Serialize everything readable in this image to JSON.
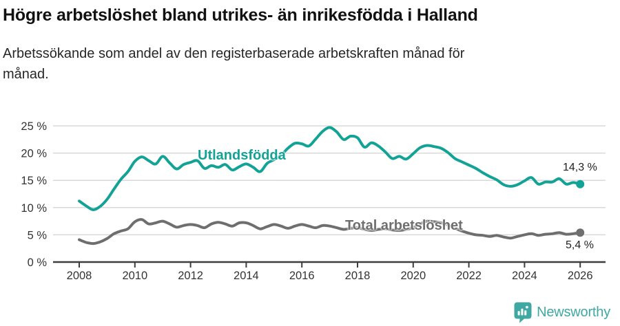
{
  "title": "Högre arbetslöshet bland utrikes- än inrikesfödda i Halland",
  "subtitle_lines": [
    "Arbetssökande som andel av den registerbaserade arbetskraften månad för",
    "månad."
  ],
  "footer": {
    "brand": "Newsworthy"
  },
  "colors": {
    "teal_series": "#13a296",
    "gray_series": "#6e6e6e",
    "grid": "#d8d8d8",
    "axis": "#3d3d3d",
    "axis_text": "#333333",
    "title_text": "#121212",
    "brand_teal": "#3fa8a2"
  },
  "chart_data": {
    "type": "line",
    "title": "Högre arbetslöshet bland utrikes- än inrikesfödda i Halland",
    "subtitle": "Arbetssökande som andel av den registerbaserade arbetskraften månad för månad.",
    "xlim": [
      2008,
      2026.9
    ],
    "ylim": [
      0,
      25
    ],
    "grid": "horizontal-only",
    "legend_position": "inline-labels",
    "x_unit": "decimal_year",
    "x_start": 2008,
    "x_step": 0.25,
    "y_ticks": [
      [
        0,
        "0 %"
      ],
      [
        5,
        "5 %"
      ],
      [
        10,
        "10 %"
      ],
      [
        15,
        "15 %"
      ],
      [
        20,
        "20 %"
      ],
      [
        25,
        "25 %"
      ]
    ],
    "x_ticks": [
      [
        2008,
        "2008"
      ],
      [
        2010,
        "2010"
      ],
      [
        2012,
        "2012"
      ],
      [
        2014,
        "2014"
      ],
      [
        2016,
        "2016"
      ],
      [
        2018,
        "2018"
      ],
      [
        2020,
        "2020"
      ],
      [
        2022,
        "2022"
      ],
      [
        2024,
        "2024"
      ],
      [
        2026,
        "2026"
      ]
    ],
    "series": [
      {
        "name": "Utlandsfödda",
        "color": "#13a296",
        "end_label": "14,3 %",
        "end_value": 14.3,
        "values": [
          11.2,
          10.3,
          9.6,
          10.2,
          11.5,
          13.4,
          15.2,
          16.6,
          18.5,
          19.3,
          18.6,
          18.0,
          19.4,
          18.2,
          17.1,
          17.9,
          18.3,
          18.6,
          17.2,
          17.7,
          17.4,
          17.9,
          16.9,
          17.5,
          18.0,
          17.4,
          16.6,
          18.1,
          18.8,
          19.6,
          20.9,
          21.8,
          21.7,
          21.3,
          22.6,
          24.0,
          24.7,
          23.9,
          22.5,
          23.1,
          22.8,
          21.1,
          21.9,
          21.3,
          20.2,
          19.0,
          19.4,
          18.9,
          19.9,
          21.0,
          21.4,
          21.2,
          20.9,
          20.1,
          19.0,
          18.4,
          17.8,
          17.2,
          16.4,
          15.7,
          15.1,
          14.2,
          13.9,
          14.2,
          14.9,
          15.5,
          14.3,
          14.7,
          14.7,
          15.3,
          14.3,
          14.6,
          14.3
        ]
      },
      {
        "name": "Total arbetslöshet",
        "color": "#6e6e6e",
        "end_label": "5,4 %",
        "end_value": 5.4,
        "values": [
          4.1,
          3.6,
          3.4,
          3.7,
          4.3,
          5.2,
          5.7,
          6.1,
          7.4,
          7.8,
          7.0,
          7.2,
          7.5,
          7.0,
          6.4,
          6.7,
          6.9,
          6.7,
          6.3,
          7.0,
          7.3,
          7.0,
          6.6,
          7.2,
          7.2,
          6.7,
          6.1,
          6.5,
          6.9,
          6.6,
          6.2,
          6.6,
          6.9,
          6.6,
          6.3,
          6.7,
          6.6,
          6.3,
          6.0,
          6.2,
          6.3,
          6.0,
          5.8,
          6.0,
          6.1,
          5.9,
          5.8,
          6.0,
          6.3,
          7.0,
          7.5,
          7.4,
          7.2,
          6.8,
          6.2,
          5.7,
          5.3,
          5.0,
          4.9,
          4.7,
          4.9,
          4.6,
          4.4,
          4.7,
          5.0,
          5.2,
          4.9,
          5.1,
          5.2,
          5.4,
          5.1,
          5.2,
          5.4
        ]
      }
    ]
  }
}
